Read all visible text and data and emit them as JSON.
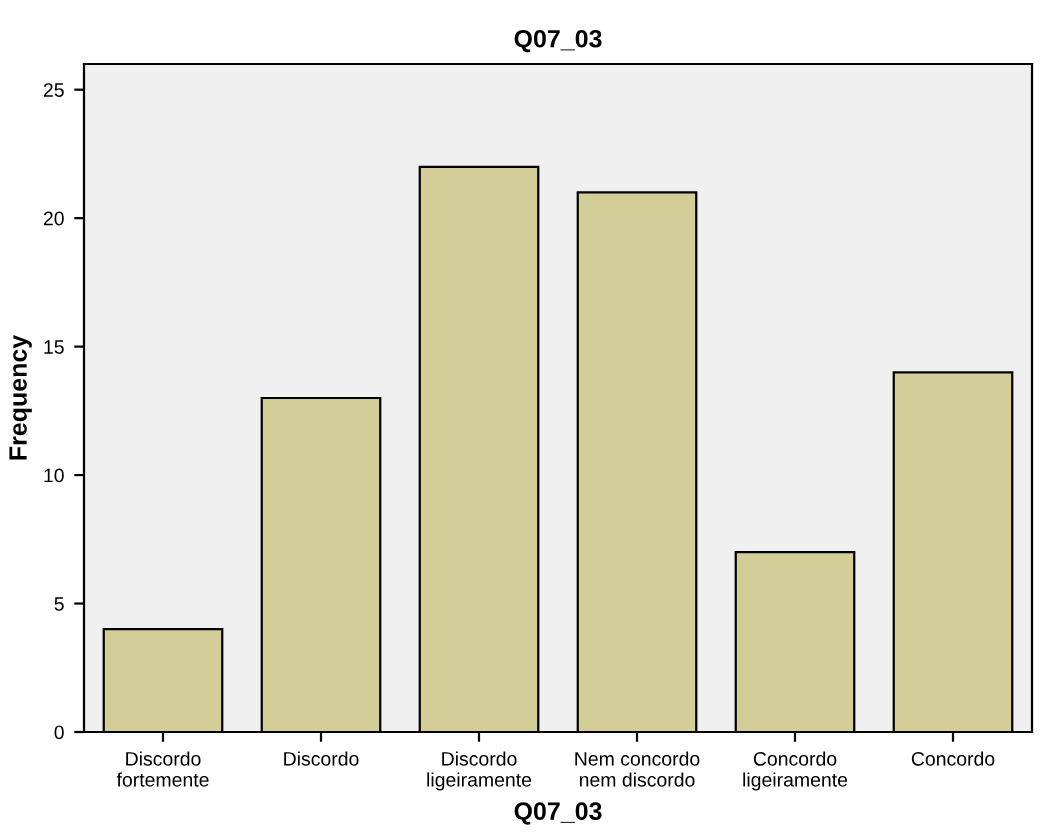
{
  "chart_data": {
    "type": "bar",
    "title": "Q07_03",
    "xlabel": "Q07_03",
    "ylabel": "Frequency",
    "categories": [
      "Discordo\nfortemente",
      "Discordo",
      "Discordo\nligeiramente",
      "Nem concordo\nnem discordo",
      "Concordo\nligeiramente",
      "Concordo"
    ],
    "values": [
      4,
      13,
      22,
      21,
      7,
      14
    ],
    "color": "#d3ce97",
    "ylim": [
      0,
      26
    ],
    "yticks": [
      0,
      5,
      10,
      15,
      20,
      25
    ],
    "grid": false
  }
}
